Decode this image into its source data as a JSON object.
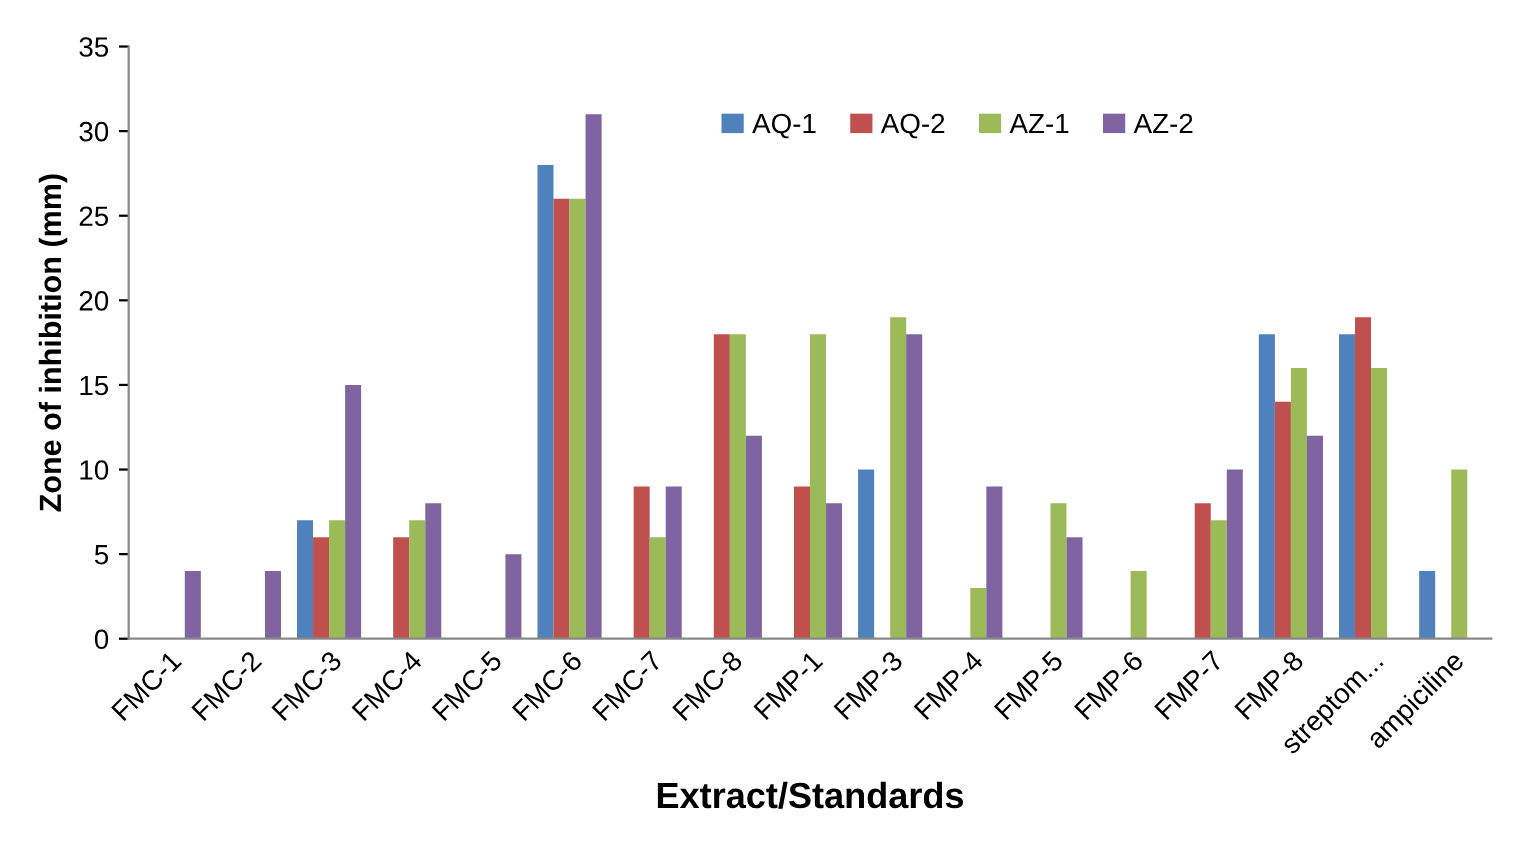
{
  "chart_data": {
    "type": "bar",
    "xlabel": "Extract/Standards",
    "ylabel": "Zone of inhibition (mm)",
    "categories": [
      "FMC-1",
      "FMC-2",
      "FMC-3",
      "FMC-4",
      "FMC-5",
      "FMC-6",
      "FMC-7",
      "FMC-8",
      "FMP-1",
      "FMP-3",
      "FMP-4",
      "FMP-5",
      "FMP-6",
      "FMP-7",
      "FMP-8",
      "streptom...",
      "ampiciline"
    ],
    "series": [
      {
        "name": "AQ-1",
        "color": "#4f81bd",
        "values": [
          null,
          null,
          7,
          null,
          null,
          28,
          null,
          null,
          null,
          10,
          null,
          null,
          null,
          null,
          18,
          18,
          4
        ]
      },
      {
        "name": "AQ-2",
        "color": "#c0504d",
        "values": [
          null,
          null,
          6,
          6,
          null,
          26,
          9,
          18,
          9,
          null,
          null,
          null,
          null,
          8,
          14,
          19,
          null
        ]
      },
      {
        "name": "AZ-1",
        "color": "#9bbb59",
        "values": [
          null,
          null,
          7,
          7,
          null,
          26,
          6,
          18,
          18,
          19,
          3,
          8,
          4,
          7,
          16,
          16,
          10
        ]
      },
      {
        "name": "AZ-2",
        "color": "#8064a2",
        "values": [
          4,
          4,
          15,
          8,
          5,
          31,
          9,
          12,
          8,
          18,
          9,
          6,
          null,
          10,
          12,
          null,
          null
        ]
      }
    ],
    "ylim": [
      0,
      35
    ],
    "yticks": [
      0,
      5,
      10,
      15,
      20,
      25,
      30,
      35
    ],
    "grid": false,
    "legend": "top right"
  }
}
